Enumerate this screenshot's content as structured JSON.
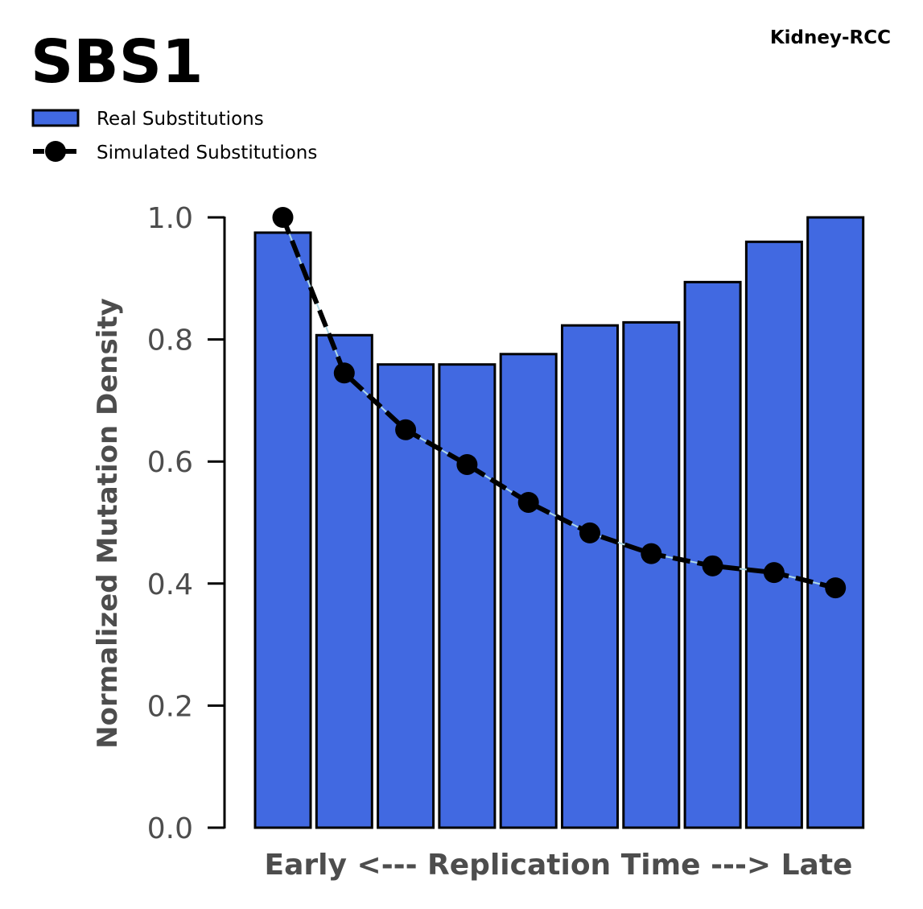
{
  "chart_data": {
    "type": "bar",
    "title": "SBS1",
    "subtitle": "Kidney-RCC",
    "xlabel": "Early <--- Replication Time ---> Late",
    "ylabel": "Normalized Mutation Density",
    "ylim": [
      0,
      1.0
    ],
    "yticks": [
      "0.0",
      "0.2",
      "0.4",
      "0.6",
      "0.8",
      "1.0"
    ],
    "grid": false,
    "legend_placement": "top-left",
    "colors": {
      "bar": "#4169e1",
      "edge": "#000000",
      "line": "#000000",
      "thin_line": "#add8e6"
    },
    "series": [
      {
        "name": "Real Substitutions",
        "kind": "bar",
        "values": [
          0.975,
          0.807,
          0.759,
          0.759,
          0.776,
          0.823,
          0.828,
          0.894,
          0.96,
          1.0
        ]
      },
      {
        "name": "Simulated Substitutions",
        "kind": "line",
        "values": [
          1.0,
          0.745,
          0.652,
          0.595,
          0.533,
          0.483,
          0.449,
          0.429,
          0.418,
          0.393
        ]
      }
    ]
  }
}
